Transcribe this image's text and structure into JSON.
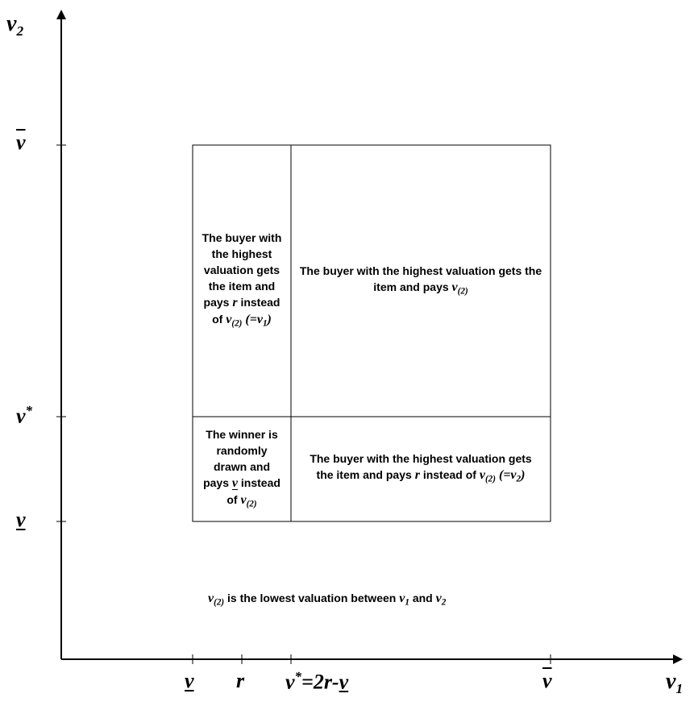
{
  "axes": {
    "y_label": "v",
    "y_label_sub": "2",
    "x_label": "v",
    "x_label_sub": "1"
  },
  "y_ticks": {
    "upper": "v",
    "star_v": "v",
    "star_sup": "*",
    "lower": "v"
  },
  "x_ticks": {
    "lower": "v",
    "r": "r",
    "star_v": "v",
    "star_sup": "*",
    "star_eq": "=2r-",
    "star_under": "v",
    "upper": "v"
  },
  "regions": {
    "top_left": {
      "text": "The buyer with the highest valuation gets the item and pays",
      "r": "r",
      "instead_of": "instead of",
      "v": "v",
      "v_sub": "(2)",
      "eq": "(=v",
      "eq_sub": "1",
      "eq_close": ")"
    },
    "top_right": {
      "text": "The buyer with the highest valuation gets the item and pays",
      "v": "v",
      "v_sub": "(2)"
    },
    "bottom_left": {
      "text1": "The winner is randomly drawn and pays",
      "v": "v",
      "instead_of": "instead of",
      "v2": "v",
      "v2_sub": "(2)"
    },
    "bottom_right": {
      "text": "The buyer with the highest valuation gets the item and pays",
      "r": "r",
      "instead_of": "instead of",
      "v": "v",
      "v_sub": "(2)",
      "eq": "(=v",
      "eq_sub": "2",
      "eq_close": ")"
    }
  },
  "note": {
    "v": "v",
    "v_sub": "(2)",
    "mid": "is the lowest valuation between",
    "v1": "v",
    "v1_sub": "1",
    "and": "and",
    "v2": "v",
    "v2_sub": "2"
  }
}
